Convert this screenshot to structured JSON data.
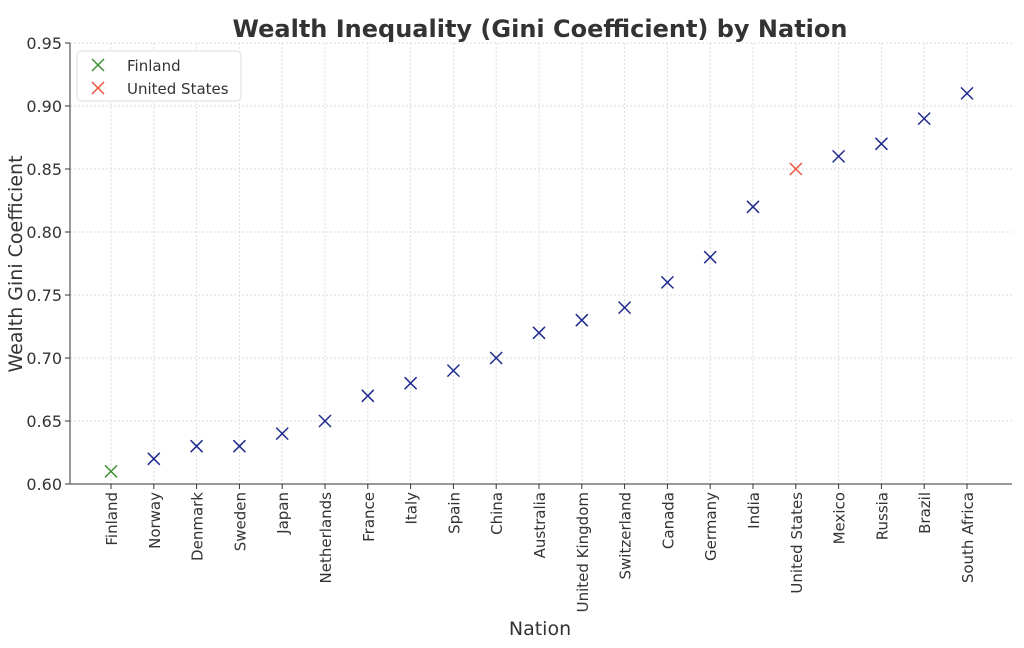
{
  "chart_data": {
    "type": "scatter",
    "title": "Wealth Inequality (Gini Coefficient) by Nation",
    "xlabel": "Nation",
    "ylabel": "Wealth Gini Coefficient",
    "categories": [
      "Finland",
      "Norway",
      "Denmark",
      "Sweden",
      "Japan",
      "Netherlands",
      "France",
      "Italy",
      "Spain",
      "China",
      "Australia",
      "United Kingdom",
      "Switzerland",
      "Canada",
      "Germany",
      "India",
      "United States",
      "Mexico",
      "Russia",
      "Brazil",
      "South Africa"
    ],
    "values": [
      0.61,
      0.62,
      0.63,
      0.63,
      0.64,
      0.65,
      0.67,
      0.68,
      0.69,
      0.7,
      0.72,
      0.73,
      0.74,
      0.76,
      0.78,
      0.82,
      0.85,
      0.86,
      0.87,
      0.89,
      0.91
    ],
    "ylim": [
      0.6,
      0.95
    ],
    "yticks": [
      "0.60",
      "0.65",
      "0.70",
      "0.75",
      "0.80",
      "0.85",
      "0.90",
      "0.95"
    ],
    "grid": true,
    "marker": "x",
    "default_color": "#1f2a8f",
    "highlights": {
      "Finland": "#3a8f2f",
      "United States": "#e8553e"
    },
    "legend": {
      "placement": "top-left",
      "entries": [
        {
          "label": "Finland",
          "color": "#3a8f2f"
        },
        {
          "label": "United States",
          "color": "#e8553e"
        }
      ]
    }
  }
}
